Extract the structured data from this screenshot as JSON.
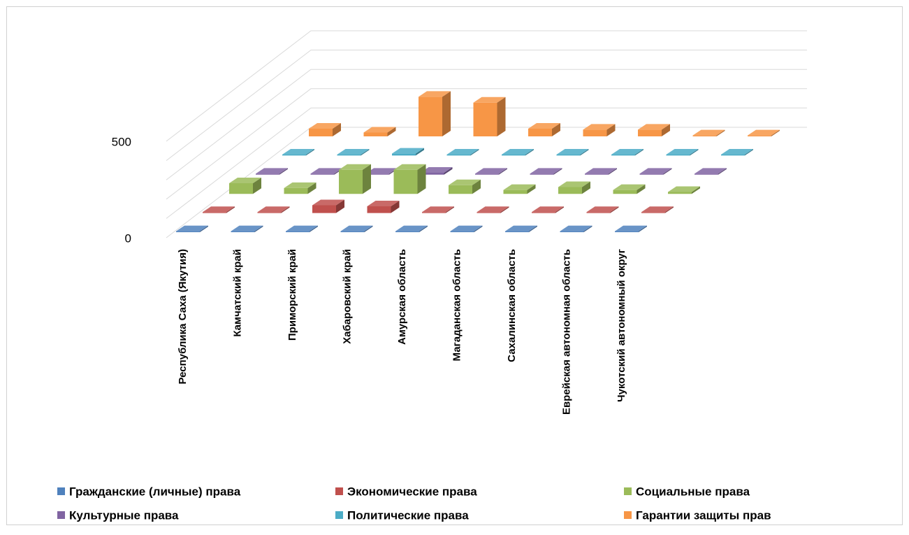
{
  "chart_data": {
    "type": "bar3d",
    "categories": [
      "Республика Саха (Якутия)",
      "Камчатский край",
      "Приморский край",
      "Хабаровский край",
      "Амурская область",
      "Магаданская область",
      "Сахалинская область",
      "Еврейская автономная область",
      "Чукотский автономный округ"
    ],
    "series": [
      {
        "name": "Гражданские (личные) права",
        "color": "#4f81bd",
        "values": [
          5,
          5,
          5,
          5,
          5,
          5,
          5,
          5,
          5
        ]
      },
      {
        "name": "Экономические права",
        "color": "#c0504d",
        "values": [
          5,
          5,
          40,
          35,
          5,
          5,
          5,
          5,
          5
        ]
      },
      {
        "name": "Социальные права",
        "color": "#9bbb59",
        "values": [
          55,
          30,
          125,
          125,
          45,
          20,
          35,
          20,
          10
        ]
      },
      {
        "name": "Культурные права",
        "color": "#8064a2",
        "values": [
          5,
          5,
          5,
          10,
          5,
          5,
          5,
          5,
          5
        ]
      },
      {
        "name": "Политические права",
        "color": "#4bacc6",
        "values": [
          5,
          5,
          10,
          5,
          5,
          5,
          5,
          5,
          5
        ]
      },
      {
        "name": "Гарантии защиты прав",
        "color": "#f79646",
        "values": [
          40,
          20,
          205,
          175,
          40,
          35,
          35,
          5,
          5
        ]
      }
    ],
    "ylim": [
      0,
      500
    ],
    "yticks": [
      0,
      500
    ],
    "minor_yticks": [
      100,
      200,
      300,
      400
    ],
    "grid": true
  }
}
